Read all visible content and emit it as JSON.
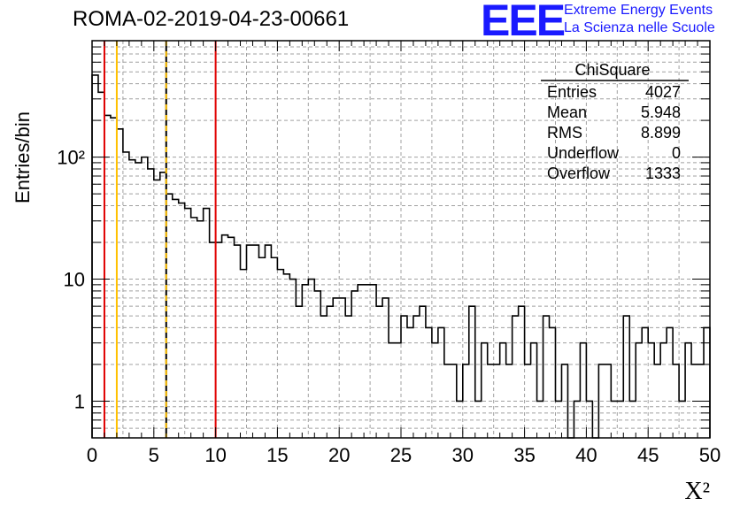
{
  "header": {
    "title": "ROMA-02-2019-04-23-00661",
    "logo_text": "EEE",
    "org_line1": "Extreme Energy Events",
    "org_line2": "La Scienza nelle Scuole"
  },
  "colors": {
    "logo": "#1a1aff",
    "red_line": "#e00000",
    "yellow_line": "#ffc000",
    "histogram": "#000000",
    "grid": "#a0a0a0"
  },
  "stats": {
    "title": "ChiSquare",
    "rows": [
      {
        "label": "Entries",
        "value": "4027"
      },
      {
        "label": "Mean",
        "value": "5.948"
      },
      {
        "label": "RMS",
        "value": "8.899"
      },
      {
        "label": "Underflow",
        "value": "0"
      },
      {
        "label": "Overflow",
        "value": "1333"
      }
    ]
  },
  "chart_data": {
    "type": "histogram",
    "xlabel": "X²",
    "ylabel": "Entries/bin",
    "xlim": [
      0,
      50
    ],
    "ylim": [
      0.5,
      900
    ],
    "yscale": "log",
    "grid": true,
    "bin_width": 0.5,
    "xticks": [
      0,
      5,
      10,
      15,
      20,
      25,
      30,
      35,
      40,
      45,
      50
    ],
    "yticks": [
      {
        "value": 1,
        "label": "1"
      },
      {
        "value": 10,
        "label": "10"
      },
      {
        "value": 100,
        "label": "10²"
      }
    ],
    "values": [
      470,
      340,
      220,
      210,
      170,
      110,
      95,
      90,
      100,
      80,
      65,
      75,
      50,
      45,
      42,
      38,
      32,
      30,
      38,
      20,
      20,
      23,
      22,
      19,
      12,
      19,
      19,
      15,
      19,
      15,
      12,
      11,
      10,
      6,
      9,
      10,
      8,
      5,
      6,
      7,
      7,
      5,
      8,
      9,
      9,
      9,
      6,
      7,
      3,
      3,
      5,
      4,
      5,
      6,
      4,
      3,
      4,
      2,
      2,
      1,
      2,
      6,
      1,
      3,
      2,
      2,
      3,
      2,
      5,
      6,
      2,
      3,
      1,
      5,
      4,
      1,
      2,
      0,
      1,
      3,
      1,
      0,
      2,
      2,
      1,
      1,
      5,
      1,
      3,
      4,
      3,
      2,
      3,
      4,
      2,
      1,
      3,
      2,
      2,
      4
    ],
    "vertical_lines": [
      {
        "x": 1,
        "color": "#e00000",
        "style": "solid"
      },
      {
        "x": 2,
        "color": "#ffc000",
        "style": "solid"
      },
      {
        "x": 6,
        "color": "#ffc000",
        "style": "dashed-yellow-black"
      },
      {
        "x": 10,
        "color": "#e00000",
        "style": "solid"
      }
    ]
  }
}
